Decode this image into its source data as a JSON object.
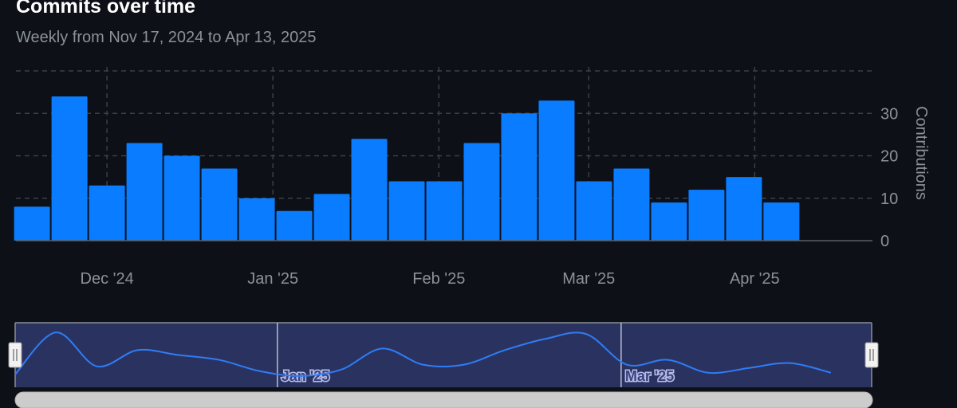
{
  "header": {
    "title": "Commits over time",
    "subtitle": "Weekly from Nov 17, 2024 to Apr 13, 2025"
  },
  "colors": {
    "background": "#0d1017",
    "bar": "#0a7cff",
    "grid": "#3b3f46",
    "axis_text": "#8b919a",
    "navigator_fill": "#2a3360",
    "navigator_line": "#2f7cf6",
    "scrollbar": "#cccccc"
  },
  "chart_data": {
    "type": "bar",
    "title": "Commits over time",
    "subtitle": "Weekly from Nov 17, 2024 to Apr 13, 2025",
    "x": [
      "2024-11-17",
      "2024-11-24",
      "2024-12-01",
      "2024-12-08",
      "2024-12-15",
      "2024-12-22",
      "2024-12-29",
      "2025-01-05",
      "2025-01-12",
      "2025-01-19",
      "2025-01-26",
      "2025-02-02",
      "2025-02-09",
      "2025-02-16",
      "2025-02-23",
      "2025-03-02",
      "2025-03-09",
      "2025-03-16",
      "2025-03-23",
      "2025-03-30",
      "2025-04-06"
    ],
    "values": [
      8,
      34,
      13,
      23,
      20,
      17,
      10,
      7,
      11,
      24,
      14,
      14,
      23,
      30,
      33,
      14,
      17,
      9,
      12,
      15,
      9
    ],
    "ylabel": "Contributions",
    "ylim": [
      0,
      40
    ],
    "yticks": [
      0,
      10,
      20,
      30
    ],
    "ytick_labels": [
      "0",
      "10",
      "20",
      "30"
    ],
    "xtick_labels": [
      "Dec '24",
      "Jan '25",
      "Feb '25",
      "Mar '25",
      "Apr '25"
    ],
    "y_axis_side": "right",
    "grid": true,
    "navigator": {
      "labels": [
        "Jan '25",
        "Mar '25"
      ],
      "range_selected": "full"
    }
  }
}
